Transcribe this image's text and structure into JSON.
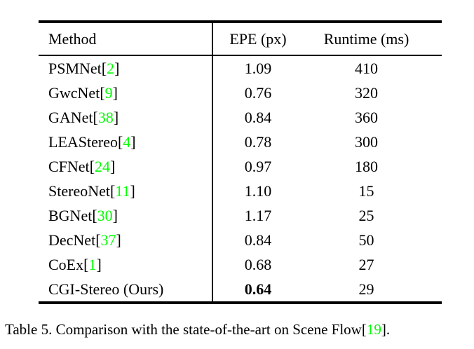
{
  "table": {
    "columns": [
      "Method",
      "EPE (px)",
      "Runtime (ms)"
    ],
    "citation_brackets": [
      "[",
      "]"
    ],
    "rows": [
      {
        "method": "PSMNet",
        "cite": "2",
        "epe": "1.09",
        "runtime": "410",
        "epe_bold": false
      },
      {
        "method": "GwcNet",
        "cite": "9",
        "epe": "0.76",
        "runtime": "320",
        "epe_bold": false
      },
      {
        "method": "GANet",
        "cite": "38",
        "epe": "0.84",
        "runtime": "360",
        "epe_bold": false
      },
      {
        "method": "LEAStereo",
        "cite": "4",
        "epe": "0.78",
        "runtime": "300",
        "epe_bold": false
      },
      {
        "method": "CFNet",
        "cite": "24",
        "epe": "0.97",
        "runtime": "180",
        "epe_bold": false
      },
      {
        "method": "StereoNet",
        "cite": "11",
        "epe": "1.10",
        "runtime": "15",
        "epe_bold": false
      },
      {
        "method": "BGNet",
        "cite": "30",
        "epe": "1.17",
        "runtime": "25",
        "epe_bold": false
      },
      {
        "method": "DecNet",
        "cite": "37",
        "epe": "0.84",
        "runtime": "50",
        "epe_bold": false
      },
      {
        "method": "CoEx",
        "cite": "1",
        "epe": "0.68",
        "runtime": "27",
        "epe_bold": false
      },
      {
        "method": "CGI-Stereo (Ours)",
        "cite": "",
        "epe": "0.64",
        "runtime": "29",
        "epe_bold": true
      }
    ]
  },
  "caption": {
    "text_before": "Table 5. Comparison with the state-of-the-art on Scene Flow",
    "bracket_open": "[",
    "cite": "19",
    "bracket_close": "]",
    "text_after": "."
  },
  "colors": {
    "citation": "#00FF00",
    "text": "#000000",
    "background": "#ffffff"
  }
}
